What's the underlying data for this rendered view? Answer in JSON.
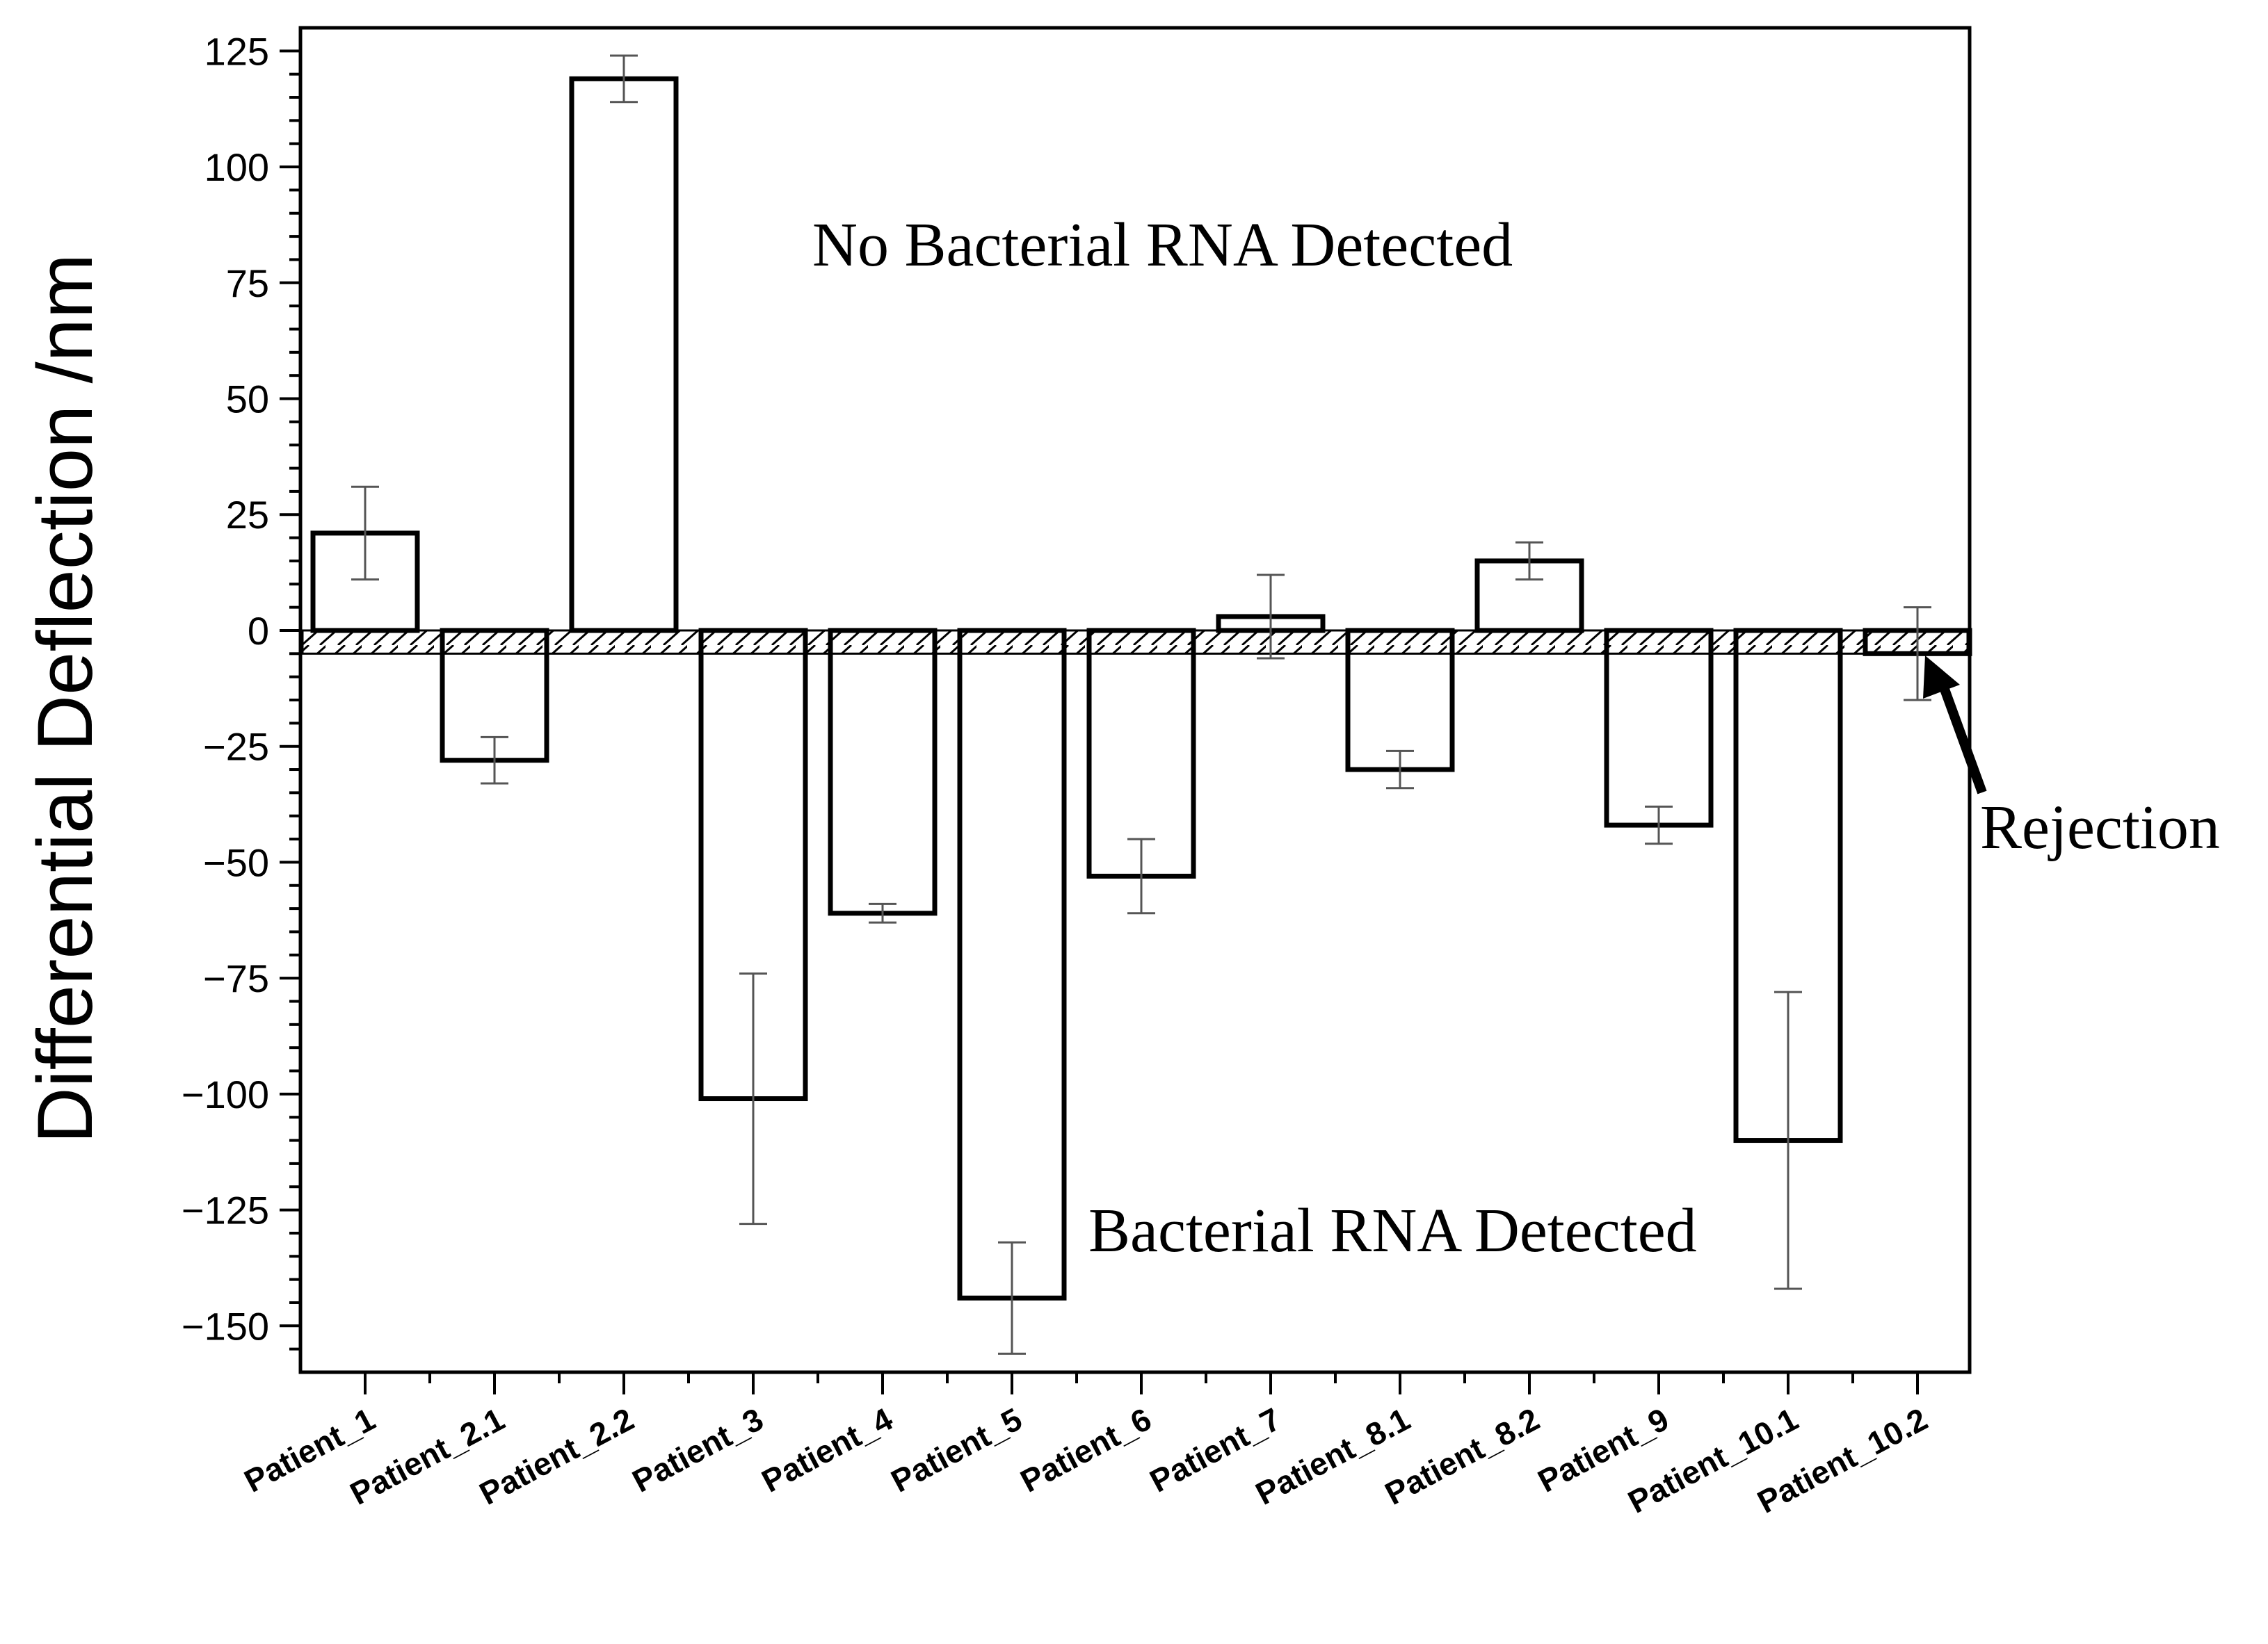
{
  "chart_data": {
    "type": "bar",
    "title": "",
    "xlabel": "",
    "ylabel": "Differential Deflection /nm",
    "ylim": [
      -160,
      130
    ],
    "yticks": [
      125,
      100,
      75,
      50,
      25,
      0,
      -25,
      -50,
      -75,
      -100,
      -125,
      -150
    ],
    "ytick_labels": [
      "125",
      "100",
      "75",
      "50",
      "25",
      "0",
      "−25",
      "−50",
      "−75",
      "−100",
      "−125",
      "−150"
    ],
    "categories": [
      "Patient_1",
      "Patient_2.1",
      "Patient_2.2",
      "Patient_3",
      "Patient_4",
      "Patient_5",
      "Patient_6",
      "Patient_7",
      "Patient_8.1",
      "Patient_8.2",
      "Patient_9",
      "Patient_10.1",
      "Patient_10.2"
    ],
    "values": [
      21,
      -28,
      119,
      -101,
      -61,
      -144,
      -53,
      3,
      -30,
      15,
      -42,
      -110,
      -5
    ],
    "error": [
      10,
      5,
      5,
      27,
      2,
      12,
      8,
      9,
      4,
      4,
      4,
      32,
      10
    ],
    "rejection_band": [
      -5,
      0
    ],
    "annotations": {
      "top": "No Bacterial RNA Detected",
      "bottom": "Bacterial RNA Detected",
      "rejection": "Rejection"
    },
    "grid": false,
    "legend": "none"
  }
}
